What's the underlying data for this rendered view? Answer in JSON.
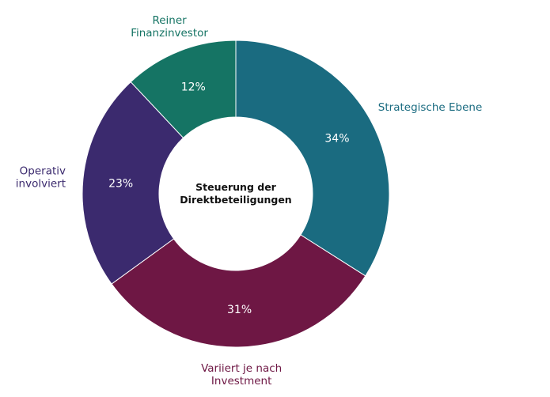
{
  "chart_data": {
    "type": "pie",
    "variant": "donut",
    "center_title_lines": [
      "Steuerung der",
      "Direktbeteiligungen"
    ],
    "slices": [
      {
        "label_lines": [
          "Strategische Ebene"
        ],
        "value": 34,
        "value_label": "34%",
        "color": "#1a6b80"
      },
      {
        "label_lines": [
          "Variiert je nach",
          "Investment"
        ],
        "value": 31,
        "value_label": "31%",
        "color": "#6e1744"
      },
      {
        "label_lines": [
          "Operativ",
          "involviert"
        ],
        "value": 23,
        "value_label": "23%",
        "color": "#3b2a6e"
      },
      {
        "label_lines": [
          "Reiner",
          "Finanzinvestor"
        ],
        "value": 12,
        "value_label": "12%",
        "color": "#157464"
      }
    ],
    "start": "top",
    "direction": "clockwise",
    "legend": "none"
  }
}
